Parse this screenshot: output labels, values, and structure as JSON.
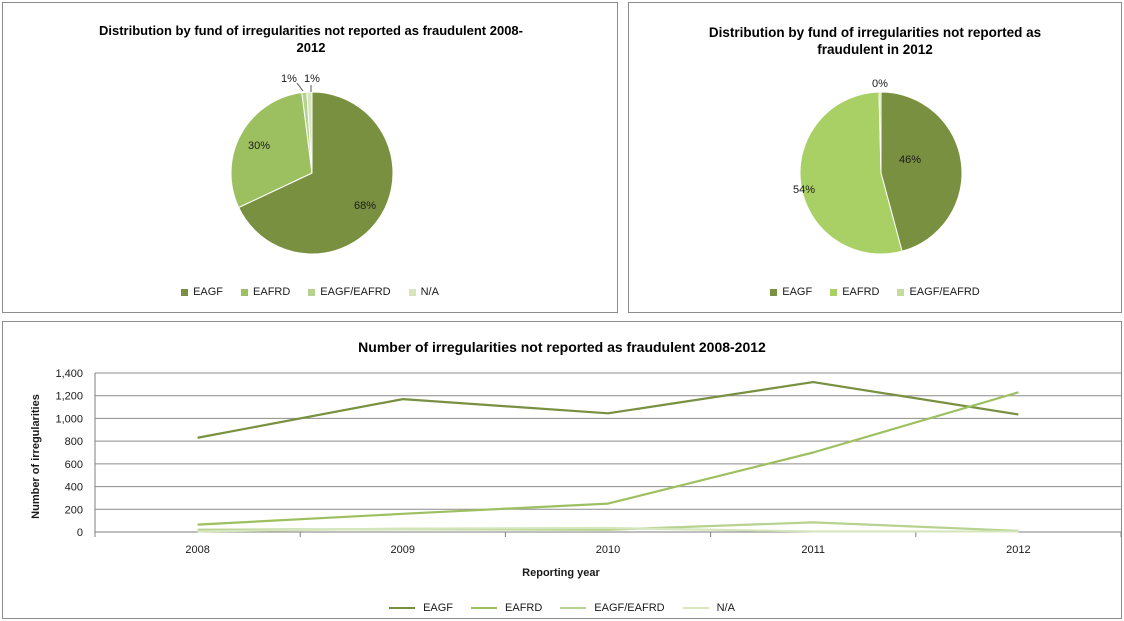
{
  "colors": {
    "eagf": "#789040",
    "eafrd": "#9CC060",
    "eagf_eafrd": "#B5D28F",
    "na": "#D6E6BC",
    "eafrd_2012": "#A8D064",
    "grid": "#8c8c8c",
    "axis": "#7f7f7f"
  },
  "chart_data": [
    {
      "type": "pie",
      "title": "Distribution by fund of irregularities not reported as fraudulent 2008-2012",
      "title_lines": [
        "Distribution by fund of irregularities not reported as fraudulent 2008-",
        "2012"
      ],
      "slices": [
        {
          "name": "EAGF",
          "value": 68,
          "label": "68%"
        },
        {
          "name": "EAFRD",
          "value": 30,
          "label": "30%"
        },
        {
          "name": "EAGF/EAFRD",
          "value": 1,
          "label": "1%"
        },
        {
          "name": "N/A",
          "value": 1,
          "label": "1%"
        }
      ],
      "legend": "bottom"
    },
    {
      "type": "pie",
      "title": "Distribution by fund of irregularities not reported as fraudulent in 2012",
      "title_lines": [
        "Distribution by fund of irregularities not reported as",
        "fraudulent in 2012"
      ],
      "slices": [
        {
          "name": "EAGF",
          "value": 46,
          "label": "46%"
        },
        {
          "name": "EAFRD",
          "value": 54,
          "label": "54%"
        },
        {
          "name": "EAGF/EAFRD",
          "value": 0.4,
          "label": "0%"
        }
      ],
      "legend": "bottom"
    },
    {
      "type": "line",
      "title": "Number of irregularities not reported as fraudulent 2008-2012",
      "xlabel": "Reporting year",
      "ylabel": "Number of irregularities",
      "x": [
        "2008",
        "2009",
        "2010",
        "2011",
        "2012"
      ],
      "ylim": [
        0,
        1400
      ],
      "yticks": [
        "0",
        "200",
        "400",
        "600",
        "800",
        "1,000",
        "1,200",
        "1,400"
      ],
      "grid": true,
      "legend": "bottom",
      "series": [
        {
          "name": "EAGF",
          "values": [
            830,
            1170,
            1045,
            1320,
            1035
          ]
        },
        {
          "name": "EAFRD",
          "values": [
            65,
            160,
            250,
            700,
            1230
          ]
        },
        {
          "name": "EAGF/EAFRD",
          "values": [
            20,
            25,
            20,
            85,
            10
          ]
        },
        {
          "name": "N/A",
          "values": [
            5,
            30,
            35,
            5,
            5
          ]
        }
      ]
    }
  ]
}
